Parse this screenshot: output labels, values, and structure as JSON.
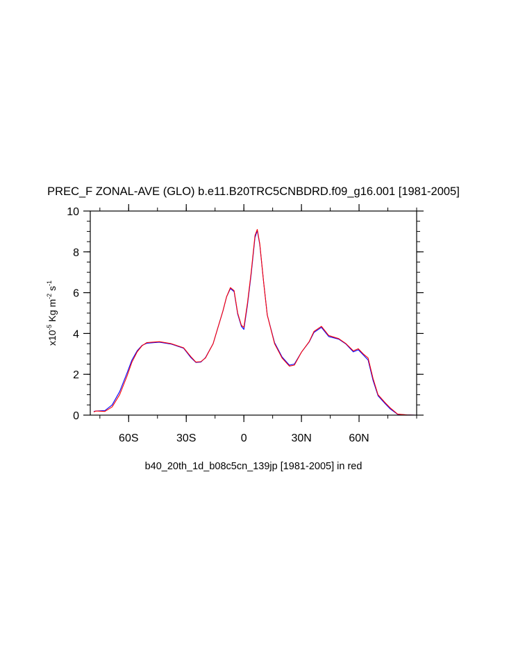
{
  "chart_data": {
    "type": "line",
    "title": "PREC_F ZONAL-AVE (GLO) b.e11.B20TRC5CNBDRD.f09_g16.001 [1981-2005]",
    "xlabel": "b40_20th_1d_b08c5cn_139jp [1981-2005] in red",
    "ylabel": {
      "prefix": "x10",
      "exp1": "-5",
      "mid": " Kg m",
      "exp2": "-2",
      "mid2": " s",
      "exp3": "-1"
    },
    "xlim": [
      -80,
      90
    ],
    "ylim": [
      0,
      10
    ],
    "x_ticks": [
      {
        "value": -60,
        "label": "60S"
      },
      {
        "value": -30,
        "label": "30S"
      },
      {
        "value": 0,
        "label": "0"
      },
      {
        "value": 30,
        "label": "30N"
      },
      {
        "value": 60,
        "label": "60N"
      }
    ],
    "x_minor_step": 15,
    "y_ticks": [
      {
        "value": 0,
        "label": "0"
      },
      {
        "value": 2,
        "label": "2"
      },
      {
        "value": 4,
        "label": "4"
      },
      {
        "value": 6,
        "label": "6"
      },
      {
        "value": 8,
        "label": "8"
      },
      {
        "value": 10,
        "label": "10"
      }
    ],
    "y_minor_step": 0.5,
    "grid": false,
    "colors": {
      "series_a": "#0000ff",
      "series_b": "#ff0000"
    },
    "x": [
      -78.2,
      -77,
      -72.4,
      -68.6,
      -64.7,
      -60.9,
      -58.3,
      -55.6,
      -53,
      -50.6,
      -44,
      -37.8,
      -31.4,
      -27.6,
      -25,
      -22.4,
      -20,
      -16,
      -13.5,
      -10.9,
      -9,
      -7,
      -5.1,
      -3.2,
      -1.3,
      0,
      1.9,
      3.8,
      5.8,
      7,
      8.3,
      10.3,
      12.2,
      16,
      19.9,
      23.7,
      26.3,
      30.1,
      34,
      36.5,
      40.4,
      44.2,
      49.4,
      53.2,
      57,
      59.6,
      62.2,
      64.7,
      67.3,
      69.9,
      73.7,
      76.3,
      80.1,
      85,
      89.7
    ],
    "series": [
      {
        "color": "#0000ff",
        "values": [
          0.18,
          0.2,
          0.22,
          0.5,
          1.15,
          2.05,
          2.7,
          3.15,
          3.42,
          3.52,
          3.57,
          3.48,
          3.28,
          2.82,
          2.58,
          2.6,
          2.82,
          3.5,
          4.3,
          5.1,
          5.8,
          6.2,
          6.05,
          4.95,
          4.35,
          4.2,
          5.4,
          6.9,
          8.7,
          9.05,
          8.35,
          6.5,
          4.9,
          3.55,
          2.85,
          2.45,
          2.5,
          3.1,
          3.58,
          4.05,
          4.3,
          3.85,
          3.72,
          3.48,
          3.1,
          3.2,
          2.95,
          2.7,
          1.7,
          0.95,
          0.55,
          0.3,
          0.04,
          0.01,
          0.0
        ]
      },
      {
        "color": "#ff0000",
        "values": [
          0.16,
          0.2,
          0.18,
          0.4,
          1.0,
          1.9,
          2.6,
          3.1,
          3.4,
          3.55,
          3.6,
          3.5,
          3.3,
          2.86,
          2.6,
          2.62,
          2.8,
          3.5,
          4.3,
          5.1,
          5.8,
          6.25,
          6.1,
          5.0,
          4.4,
          4.3,
          5.5,
          7.0,
          8.8,
          9.1,
          8.4,
          6.5,
          4.9,
          3.5,
          2.8,
          2.4,
          2.45,
          3.1,
          3.6,
          4.1,
          4.35,
          3.9,
          3.75,
          3.5,
          3.15,
          3.25,
          3.0,
          2.8,
          1.8,
          1.0,
          0.6,
          0.35,
          0.05,
          0.01,
          0.0
        ]
      }
    ]
  }
}
